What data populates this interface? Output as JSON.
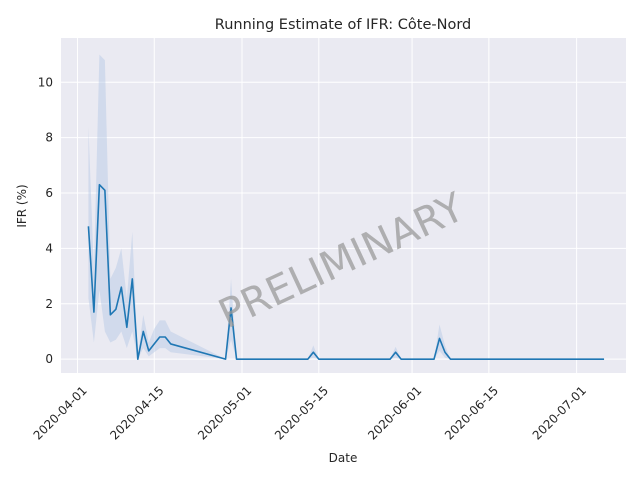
{
  "chart_data": {
    "type": "line",
    "title": "Running Estimate of IFR: Côte-Nord",
    "xlabel": "Date",
    "ylabel": "IFR (%)",
    "watermark": "PRELIMINARY",
    "x_tick_labels": [
      "2020-04-01",
      "2020-04-15",
      "2020-05-01",
      "2020-05-15",
      "2020-06-01",
      "2020-06-15",
      "2020-07-01"
    ],
    "y_ticks": [
      0,
      2,
      4,
      6,
      8,
      10
    ],
    "ylim": [
      -0.5,
      11.6
    ],
    "xlim": [
      "2020-03-29",
      "2020-07-10"
    ],
    "grid": true,
    "colors": {
      "line": "#1f77b4",
      "band": "#b4c8e4",
      "background": "#eaeaf2",
      "grid": "#ffffff"
    },
    "series": [
      {
        "x": [
          "2020-04-03",
          "2020-04-04",
          "2020-04-05",
          "2020-04-06",
          "2020-04-07",
          "2020-04-08",
          "2020-04-09",
          "2020-04-10",
          "2020-04-11",
          "2020-04-12",
          "2020-04-13",
          "2020-04-14",
          "2020-04-15",
          "2020-04-16",
          "2020-04-17",
          "2020-04-18",
          "2020-04-28",
          "2020-04-29",
          "2020-04-30",
          "2020-05-13",
          "2020-05-14",
          "2020-05-15",
          "2020-05-28",
          "2020-05-29",
          "2020-05-30",
          "2020-06-05",
          "2020-06-06",
          "2020-06-07",
          "2020-06-08",
          "2020-07-06"
        ],
        "y": [
          4.8,
          1.7,
          6.3,
          6.1,
          1.6,
          1.8,
          2.6,
          1.15,
          2.9,
          0.0,
          1.0,
          0.3,
          0.55,
          0.8,
          0.8,
          0.55,
          0.0,
          1.85,
          0.0,
          0.0,
          0.25,
          0.0,
          0.0,
          0.25,
          0.0,
          0.0,
          0.75,
          0.25,
          0.0,
          0.0
        ],
        "lower": [
          2.2,
          0.6,
          2.5,
          1.0,
          0.6,
          0.7,
          1.0,
          0.4,
          1.0,
          0.0,
          0.4,
          0.1,
          0.25,
          0.4,
          0.4,
          0.25,
          0.0,
          0.7,
          0.0,
          0.0,
          0.05,
          0.0,
          0.0,
          0.05,
          0.0,
          0.0,
          0.3,
          0.05,
          0.0,
          0.0
        ],
        "upper": [
          8.4,
          3.2,
          11.0,
          10.8,
          2.9,
          3.3,
          4.0,
          2.2,
          4.6,
          0.1,
          1.6,
          0.6,
          1.1,
          1.4,
          1.4,
          1.0,
          0.0,
          2.9,
          0.0,
          0.0,
          0.5,
          0.0,
          0.0,
          0.45,
          0.0,
          0.0,
          1.25,
          0.5,
          0.0,
          0.0
        ]
      }
    ]
  }
}
